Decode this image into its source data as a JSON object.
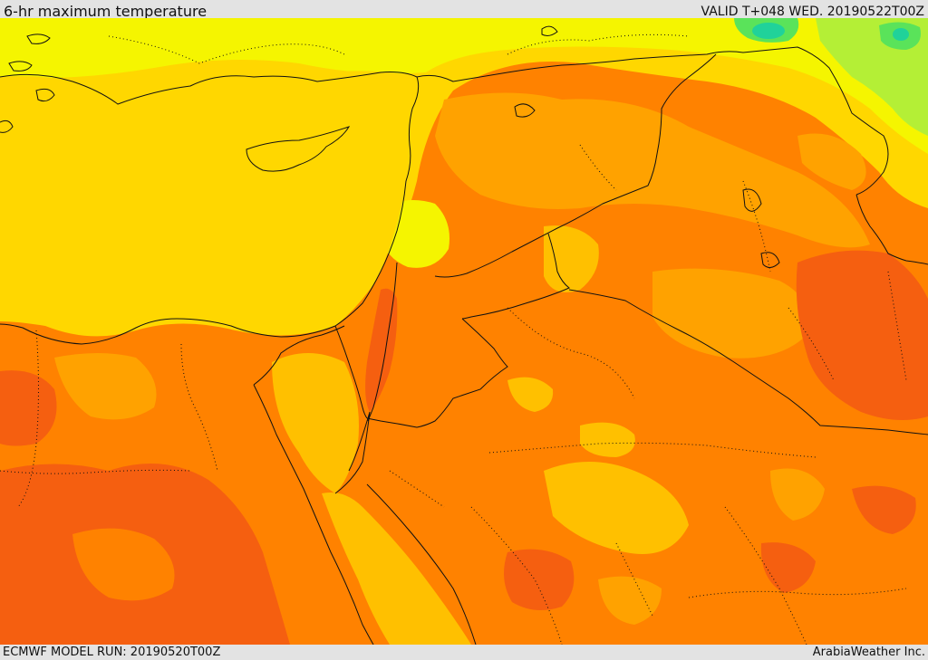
{
  "header": {
    "title": "6-hr maximum temperature",
    "valid": "VALID T+048 WED. 20190522T00Z"
  },
  "footer": {
    "model_run": "ECMWF MODEL RUN: 20190520T00Z",
    "credit": "ArabiaWeather Inc."
  },
  "map": {
    "field": "6-hr maximum temperature",
    "palette": {
      "very_hot": "#f55f10",
      "hot": "#ff8200",
      "warm_orange": "#ffa200",
      "warm": "#ffc000",
      "mild": "#ffd700",
      "cool_yellow": "#f5f500",
      "cooler": "#e6f520",
      "lime": "#b4ef36",
      "green": "#5ae35a",
      "teal": "#20d29a"
    },
    "border_color": "#111111"
  }
}
